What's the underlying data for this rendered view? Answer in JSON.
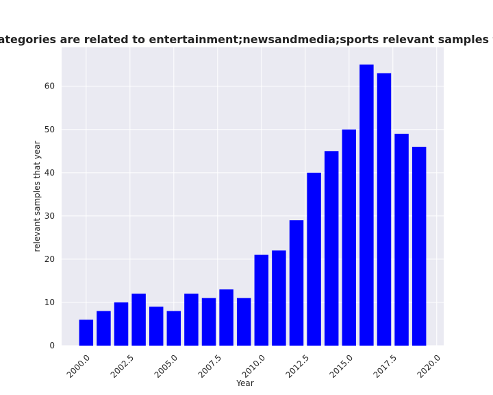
{
  "chart_data": {
    "type": "bar",
    "title": "Number of apps whose categories are related to entertainment;newsandmedia;sports relevant samples that year in privacy policy",
    "xlabel": "Year",
    "ylabel": "relevant samples that year",
    "x": [
      2000,
      2001,
      2002,
      2003,
      2004,
      2005,
      2006,
      2007,
      2008,
      2009,
      2010,
      2011,
      2012,
      2013,
      2014,
      2015,
      2016,
      2017,
      2018,
      2019
    ],
    "values": [
      6,
      8,
      10,
      12,
      9,
      8,
      12,
      11,
      13,
      11,
      21,
      22,
      29,
      40,
      45,
      50,
      65,
      63,
      49,
      46
    ],
    "xlim": [
      1998.6,
      2020.4
    ],
    "ylim": [
      0,
      69
    ],
    "xticks": [
      2000.0,
      2002.5,
      2005.0,
      2007.5,
      2010.0,
      2012.5,
      2015.0,
      2017.5,
      2020.0
    ],
    "xtick_labels": [
      "2000.0",
      "2002.5",
      "2005.0",
      "2007.5",
      "2010.0",
      "2012.5",
      "2015.0",
      "2017.5",
      "2020.0"
    ],
    "yticks": [
      0,
      10,
      20,
      30,
      40,
      50,
      60
    ],
    "ytick_labels": [
      "0",
      "10",
      "20",
      "30",
      "40",
      "50",
      "60"
    ],
    "bar_color": "#0000ff",
    "plot_background": "#eaeaf2",
    "grid_color": "#ffffff",
    "grid": true
  }
}
